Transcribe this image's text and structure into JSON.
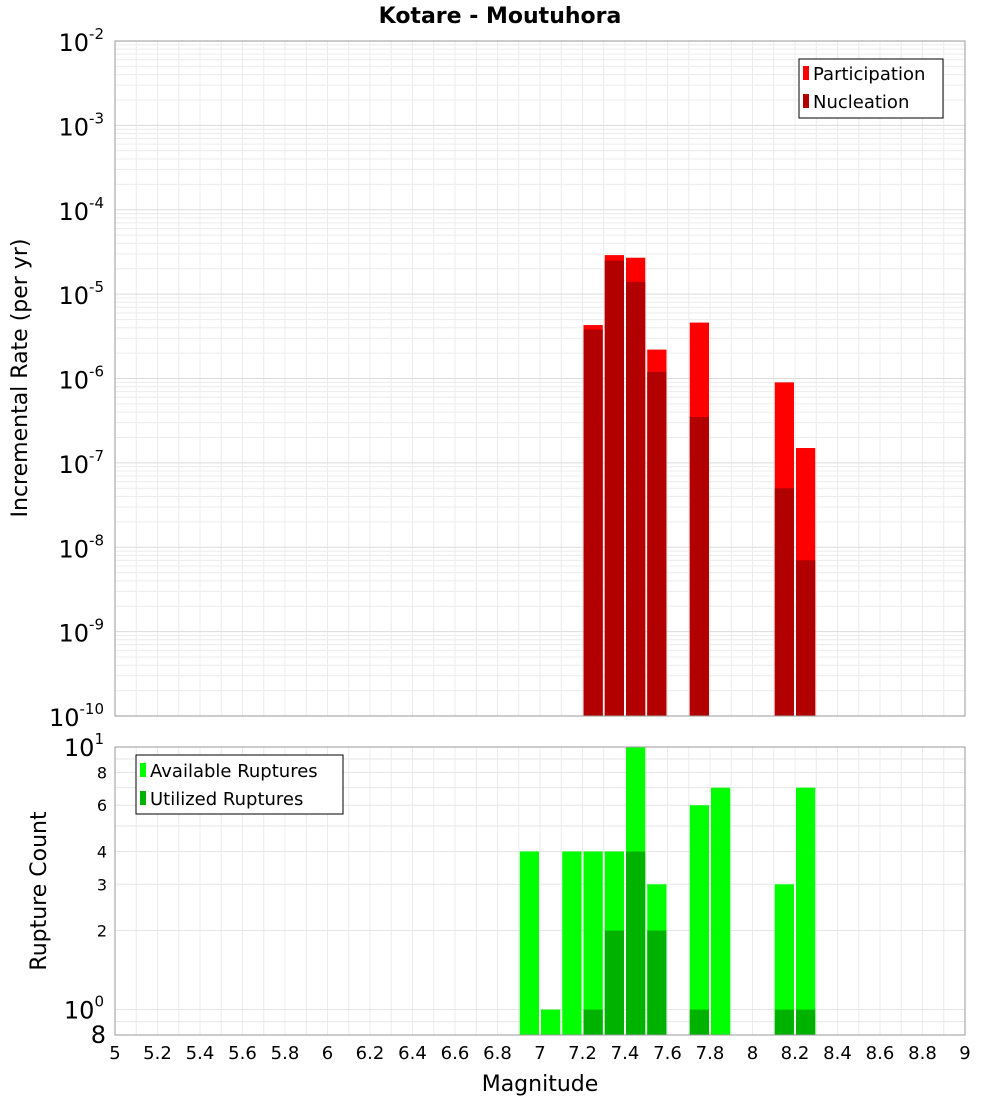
{
  "chart_data": [
    {
      "type": "bar",
      "scale": "log",
      "title": "Kotare - Moutuhora",
      "xlabel": "",
      "ylabel": "Incremental Rate (per yr)",
      "xlim": [
        5,
        9
      ],
      "ylim_exponents": [
        -10,
        -2
      ],
      "y_tick_labels": [
        {
          "exp": -2,
          "base": "10",
          "sup": "-2"
        },
        {
          "exp": -3,
          "base": "10",
          "sup": "-3"
        },
        {
          "exp": -4,
          "base": "10",
          "sup": "-4"
        },
        {
          "exp": -5,
          "base": "10",
          "sup": "-5"
        },
        {
          "exp": -6,
          "base": "10",
          "sup": "-6"
        },
        {
          "exp": -7,
          "base": "10",
          "sup": "-7"
        },
        {
          "exp": -8,
          "base": "10",
          "sup": "-8"
        },
        {
          "exp": -9,
          "base": "10",
          "sup": "-9"
        },
        {
          "exp": -10,
          "base": "10",
          "sup": "-10"
        }
      ],
      "bar_width": 0.1,
      "legend": [
        {
          "name": "Participation",
          "color": "#ff0000"
        },
        {
          "name": "Nucleation",
          "color": "#b20000"
        }
      ],
      "series": [
        {
          "name": "Participation",
          "color": "#ff0000",
          "points": [
            {
              "x": 7.25,
              "y": 4.3e-06
            },
            {
              "x": 7.35,
              "y": 2.9e-05
            },
            {
              "x": 7.45,
              "y": 2.7e-05
            },
            {
              "x": 7.55,
              "y": 2.2e-06
            },
            {
              "x": 7.75,
              "y": 4.6e-06
            },
            {
              "x": 8.15,
              "y": 9e-07
            },
            {
              "x": 8.25,
              "y": 1.5e-07
            }
          ]
        },
        {
          "name": "Nucleation",
          "color": "#b20000",
          "points": [
            {
              "x": 7.25,
              "y": 3.8e-06
            },
            {
              "x": 7.35,
              "y": 2.5e-05
            },
            {
              "x": 7.45,
              "y": 1.4e-05
            },
            {
              "x": 7.55,
              "y": 1.2e-06
            },
            {
              "x": 7.75,
              "y": 3.5e-07
            },
            {
              "x": 8.15,
              "y": 5e-08
            },
            {
              "x": 8.25,
              "y": 7e-09
            }
          ]
        }
      ]
    },
    {
      "type": "bar",
      "scale": "log",
      "title": "",
      "xlabel": "Magnitude",
      "ylabel": "Rupture Count",
      "xlim": [
        5,
        9
      ],
      "ylim": [
        0.8,
        10
      ],
      "x_ticks": [
        "5",
        "5.2",
        "5.4",
        "5.6",
        "5.8",
        "6",
        "6.2",
        "6.4",
        "6.6",
        "6.8",
        "7",
        "7.2",
        "7.4",
        "7.6",
        "7.8",
        "8",
        "8.2",
        "8.4",
        "8.6",
        "8.8",
        "9"
      ],
      "y_tick_labels": [
        {
          "value": 10,
          "base": "10",
          "sup": "1",
          "style": "power"
        },
        {
          "value": 8,
          "label": "8",
          "style": "small"
        },
        {
          "value": 6,
          "label": "6",
          "style": "small"
        },
        {
          "value": 4,
          "label": "4",
          "style": "small"
        },
        {
          "value": 3,
          "label": "3",
          "style": "small"
        },
        {
          "value": 2,
          "label": "2",
          "style": "small"
        },
        {
          "value": 1,
          "base": "10",
          "sup": "0",
          "style": "power"
        },
        {
          "value": 0.8,
          "label": "8",
          "style": "big"
        }
      ],
      "bar_width": 0.1,
      "legend": [
        {
          "name": "Available Ruptures",
          "color": "#00ff00"
        },
        {
          "name": "Utilized Ruptures",
          "color": "#00b200"
        }
      ],
      "series": [
        {
          "name": "Available Ruptures",
          "color": "#00ff00",
          "points": [
            {
              "x": 6.95,
              "y": 4
            },
            {
              "x": 7.05,
              "y": 1
            },
            {
              "x": 7.15,
              "y": 4
            },
            {
              "x": 7.25,
              "y": 4
            },
            {
              "x": 7.35,
              "y": 4
            },
            {
              "x": 7.45,
              "y": 10
            },
            {
              "x": 7.55,
              "y": 3
            },
            {
              "x": 7.75,
              "y": 6
            },
            {
              "x": 7.85,
              "y": 7
            },
            {
              "x": 8.15,
              "y": 3
            },
            {
              "x": 8.25,
              "y": 7
            }
          ]
        },
        {
          "name": "Utilized Ruptures",
          "color": "#00b200",
          "points": [
            {
              "x": 7.25,
              "y": 1
            },
            {
              "x": 7.35,
              "y": 2
            },
            {
              "x": 7.45,
              "y": 4
            },
            {
              "x": 7.55,
              "y": 2
            },
            {
              "x": 7.75,
              "y": 1
            },
            {
              "x": 8.15,
              "y": 1
            },
            {
              "x": 8.25,
              "y": 1
            }
          ]
        }
      ]
    }
  ]
}
